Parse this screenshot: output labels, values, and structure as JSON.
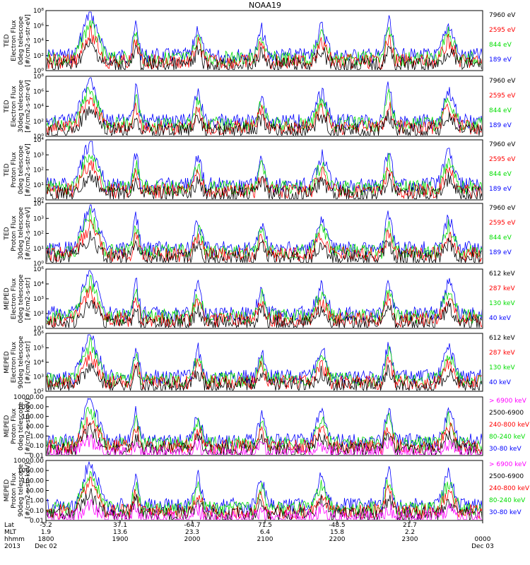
{
  "chart_data": {
    "type": "line",
    "title": "NOAA19",
    "panels": [
      {
        "ylabel": [
          "TED",
          "Electron Flux",
          "0deg telescope",
          "[#/cm2-s-str-eV]"
        ],
        "ticks": [
          "10⁸",
          "10⁶",
          "10⁴",
          "10²",
          "10⁰"
        ],
        "legend": [
          {
            "label": "7960 eV",
            "color": "#000000"
          },
          {
            "label": "2595 eV",
            "color": "#ff0000"
          },
          {
            "label": "844 eV",
            "color": "#00dd00"
          },
          {
            "label": "189 eV",
            "color": "#0000ff"
          }
        ]
      },
      {
        "ylabel": [
          "TED",
          "Electron Flux",
          "30deg telescope",
          "[#/cm2-s-str-eV]"
        ],
        "ticks": [
          "10⁸",
          "10⁶",
          "10⁴",
          "10²",
          "10⁰"
        ],
        "legend": [
          {
            "label": "7960 eV",
            "color": "#000000"
          },
          {
            "label": "2595 eV",
            "color": "#ff0000"
          },
          {
            "label": "844 eV",
            "color": "#00dd00"
          },
          {
            "label": "189 eV",
            "color": "#0000ff"
          }
        ]
      },
      {
        "ylabel": [
          "TED",
          "Proton Flux",
          "0deg telescope",
          "[#/cm2-s-str-eV]"
        ],
        "ticks": [
          "10⁴",
          "10³",
          "10²",
          "10¹",
          "10⁰"
        ],
        "legend": [
          {
            "label": "7960 eV",
            "color": "#000000"
          },
          {
            "label": "2595 eV",
            "color": "#ff0000"
          },
          {
            "label": "844 eV",
            "color": "#00dd00"
          },
          {
            "label": "189 eV",
            "color": "#0000ff"
          }
        ]
      },
      {
        "ylabel": [
          "TED",
          "Proton Flux",
          "30deg telescope",
          "[#/cm2-s-str-eV]"
        ],
        "ticks": [
          "10⁴",
          "10³",
          "10²",
          "10¹",
          "10⁰"
        ],
        "legend": [
          {
            "label": "7960 eV",
            "color": "#000000"
          },
          {
            "label": "2595 eV",
            "color": "#ff0000"
          },
          {
            "label": "844 eV",
            "color": "#00dd00"
          },
          {
            "label": "189 eV",
            "color": "#0000ff"
          }
        ]
      },
      {
        "ylabel": [
          "MEPED",
          "Electron Flux",
          "0deg telescope",
          "[#/cm2-s-str]"
        ],
        "ticks": [
          "10⁶",
          "10⁴",
          "10³",
          "10²",
          "10¹"
        ],
        "legend": [
          {
            "label": "612 keV",
            "color": "#000000"
          },
          {
            "label": "287 keV",
            "color": "#ff0000"
          },
          {
            "label": "130 keV",
            "color": "#00dd00"
          },
          {
            "label": "40 keV",
            "color": "#0000ff"
          }
        ]
      },
      {
        "ylabel": [
          "MEPED",
          "Electron Flux",
          "90deg telescope",
          "[#/cm2-s-str]"
        ],
        "ticks": [
          "10⁶",
          "10⁵",
          "10⁴",
          "10³",
          "10²"
        ],
        "legend": [
          {
            "label": "612 keV",
            "color": "#000000"
          },
          {
            "label": "287 keV",
            "color": "#ff0000"
          },
          {
            "label": "130 keV",
            "color": "#00dd00"
          },
          {
            "label": "40 keV",
            "color": "#0000ff"
          }
        ]
      },
      {
        "ylabel": [
          "MEPED",
          "Proton Flux",
          "0deg telescope",
          "[#/cm2-s-str-keV]"
        ],
        "ticks": [
          "10000.00",
          "1000.00",
          "100.00",
          "10.00",
          "1.00",
          "0.10",
          "0.01"
        ],
        "legend": [
          {
            "label": "> 6900 keV",
            "color": "#ff00ff"
          },
          {
            "label": "2500-6900",
            "color": "#000000"
          },
          {
            "label": "240-800 keV",
            "color": "#ff0000"
          },
          {
            "label": "80-240 keV",
            "color": "#00dd00"
          },
          {
            "label": "30-80 keV",
            "color": "#0000ff"
          }
        ]
      },
      {
        "ylabel": [
          "MEPED",
          "Proton Flux",
          "90deg telescope",
          "[#/cm2-s-str-keV]"
        ],
        "ticks": [
          "10000.00",
          "1000.00",
          "100.00",
          "10.00",
          "1.00",
          "0.10",
          "0.01"
        ],
        "legend": [
          {
            "label": "> 6900 keV",
            "color": "#ff00ff"
          },
          {
            "label": "2500-6900",
            "color": "#000000"
          },
          {
            "label": "240-800 keV",
            "color": "#ff0000"
          },
          {
            "label": "80-240 keV",
            "color": "#00dd00"
          },
          {
            "label": "30-80 keV",
            "color": "#0000ff"
          }
        ]
      }
    ],
    "footer": {
      "row_labels": [
        "Lat",
        "MLT",
        "hhmm",
        "2013"
      ],
      "columns": [
        {
          "lat": "-5.2",
          "mlt": "1.9",
          "hhmm": "1800",
          "date": "Dec 02"
        },
        {
          "lat": "37.1",
          "mlt": "13.6",
          "hhmm": "1900",
          "date": ""
        },
        {
          "lat": "-64.7",
          "mlt": "23.3",
          "hhmm": "2000",
          "date": ""
        },
        {
          "lat": "71.5",
          "mlt": "6.4",
          "hhmm": "2100",
          "date": ""
        },
        {
          "lat": "-48.5",
          "mlt": "15.8",
          "hhmm": "2200",
          "date": ""
        },
        {
          "lat": "21.7",
          "mlt": "2.2",
          "hhmm": "2300",
          "date": ""
        },
        {
          "lat": "",
          "mlt": "",
          "hhmm": "0000",
          "date": "Dec 03"
        }
      ]
    }
  }
}
